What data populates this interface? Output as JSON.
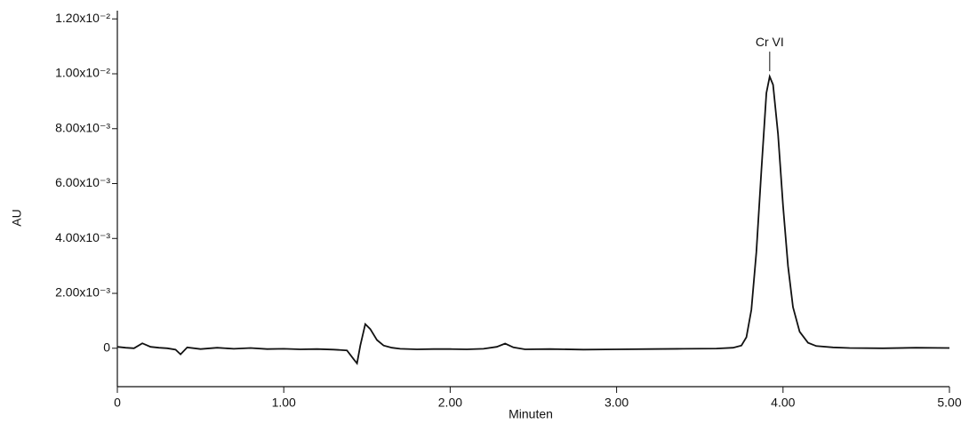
{
  "chart_data": {
    "type": "line",
    "x_label": "Minuten",
    "y_label": "AU",
    "annotation": "Cr VI",
    "x": [
      0,
      0.05,
      0.1,
      0.15,
      0.2,
      0.25,
      0.3,
      0.35,
      0.38,
      0.42,
      0.5,
      0.6,
      0.7,
      0.8,
      0.9,
      1.0,
      1.1,
      1.2,
      1.3,
      1.38,
      1.42,
      1.44,
      1.46,
      1.49,
      1.52,
      1.56,
      1.6,
      1.65,
      1.7,
      1.8,
      1.9,
      2.0,
      2.1,
      2.2,
      2.28,
      2.33,
      2.38,
      2.45,
      2.6,
      2.8,
      3.0,
      3.2,
      3.4,
      3.6,
      3.7,
      3.75,
      3.78,
      3.81,
      3.84,
      3.87,
      3.9,
      3.92,
      3.94,
      3.97,
      4.0,
      4.03,
      4.06,
      4.1,
      4.15,
      4.2,
      4.3,
      4.4,
      4.6,
      4.8,
      5.0
    ],
    "series": [
      {
        "color": "#111111",
        "values": [
          5e-05,
          2e-05,
          0,
          0.00018,
          5e-05,
          2e-05,
          0,
          -5e-05,
          -0.00022,
          3e-05,
          -3e-05,
          2e-05,
          -2e-05,
          1e-05,
          -3e-05,
          -2e-05,
          -4e-05,
          -3e-05,
          -5e-05,
          -8e-05,
          -0.0004,
          -0.00055,
          0.0001,
          0.00088,
          0.0007,
          0.0003,
          0.0001,
          2e-05,
          -2e-05,
          -4e-05,
          -3e-05,
          -3e-05,
          -4e-05,
          -2e-05,
          5e-05,
          0.00017,
          3e-05,
          -4e-05,
          -3e-05,
          -5e-05,
          -4e-05,
          -3e-05,
          -2e-05,
          -1e-05,
          2e-05,
          0.0001,
          0.0004,
          0.0014,
          0.0035,
          0.0065,
          0.0093,
          0.0099,
          0.0096,
          0.0078,
          0.0052,
          0.003,
          0.0015,
          0.0006,
          0.0002,
          8e-05,
          3e-05,
          1e-05,
          0,
          2e-05,
          1e-05
        ]
      }
    ],
    "xlim": [
      0,
      5
    ],
    "ylim": [
      -0.0014,
      0.0123
    ],
    "xticks": [
      0,
      {
        "value": 1,
        "label": "1.00"
      },
      {
        "value": 2,
        "label": "2.00"
      },
      {
        "value": 3,
        "label": "3.00"
      },
      {
        "value": 4,
        "label": "4.00"
      },
      {
        "value": 5,
        "label": "5.00"
      }
    ],
    "yticks": [
      0,
      {
        "value": 0.002,
        "label": "2.00x10⁻³"
      },
      {
        "value": 0.004,
        "label": "4.00x10⁻³"
      },
      {
        "value": 0.006,
        "label": "6.00x10⁻³"
      },
      {
        "value": 0.008,
        "label": "8.00x10⁻³"
      },
      {
        "value": 0.01,
        "label": "1.00x10⁻²"
      },
      {
        "value": 0.012,
        "label": "1.20x10⁻²"
      }
    ]
  }
}
